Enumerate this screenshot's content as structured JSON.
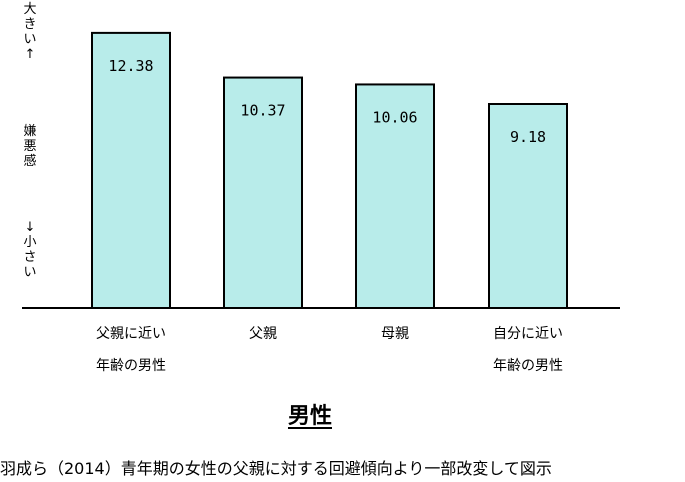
{
  "chart_data": {
    "type": "bar",
    "categories": [
      "父親に近い\n年齢の男性",
      "父親",
      "母親",
      "自分に近い\n年齢の男性"
    ],
    "values": [
      12.38,
      10.37,
      10.06,
      9.18
    ],
    "value_labels": [
      "12.38",
      "10.37",
      "10.06",
      "9.18"
    ],
    "title": "男性",
    "ylabel_top": "大きい↑",
    "ylabel_mid": "嫌悪感",
    "ylabel_bottom": "↓小さい",
    "ylim": [
      0,
      13.5
    ],
    "grid": false,
    "bar_color": "#b8ecea",
    "legend": "none"
  },
  "caption": "羽成ら（2014）青年期の女性の父親に対する回避傾向より一部改変して図示"
}
